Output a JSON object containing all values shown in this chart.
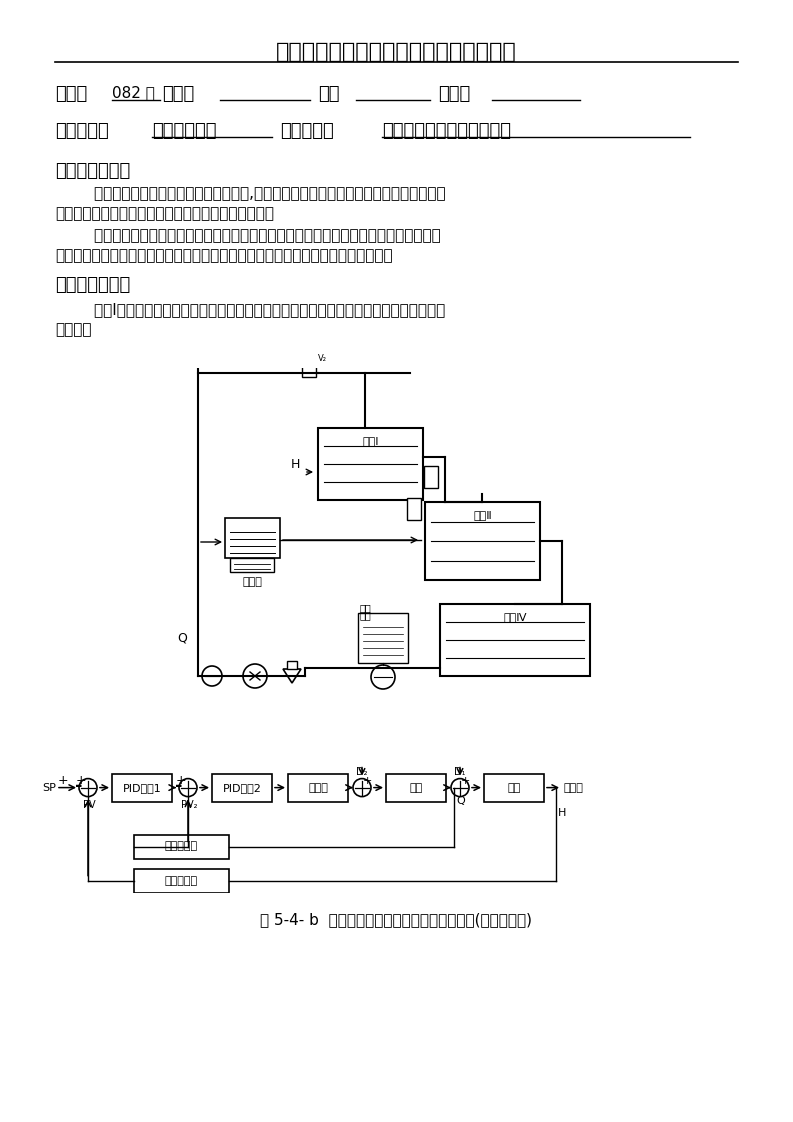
{
  "title": "嘉应学院电子信息工程学院学生实验报告",
  "line1_class": "082 班",
  "line2_course_name": "过程控制工程",
  "line2_exp_name": "上水箱液位和流量串级系统",
  "section1_title": "一、实验目的：",
  "section1_para1a": "        通过实验掌握串级控制系统的基本概念,掌握串级控制系统的组成结构，即主被控参数、",
  "section1_para1b": "副被控参数、主调节器、副调节器、主回路、副回路。",
  "section1_para2a": "        通过实验掌握串级控制系统的特点、串级控制系统的设计，掌握串级控制主、副控制回",
  "section1_para2b": "路的选择。掌握串级控制系统参数整定方法，并将串级控制系统参数投运到实验中。",
  "section2_title": "二、实验设备：",
  "section2_para1": "        水泵Ⅰ、压力变送器、变频器、牛顿模块（输入、输出）、上水箱液位变送器、流量计、",
  "section2_para2": "调节阀。",
  "fig_caption": "图 5-4- b  上水箱液位和流量串级控制系统框图(计算机控制)",
  "bg_color": "#ffffff",
  "text_color": "#000000"
}
